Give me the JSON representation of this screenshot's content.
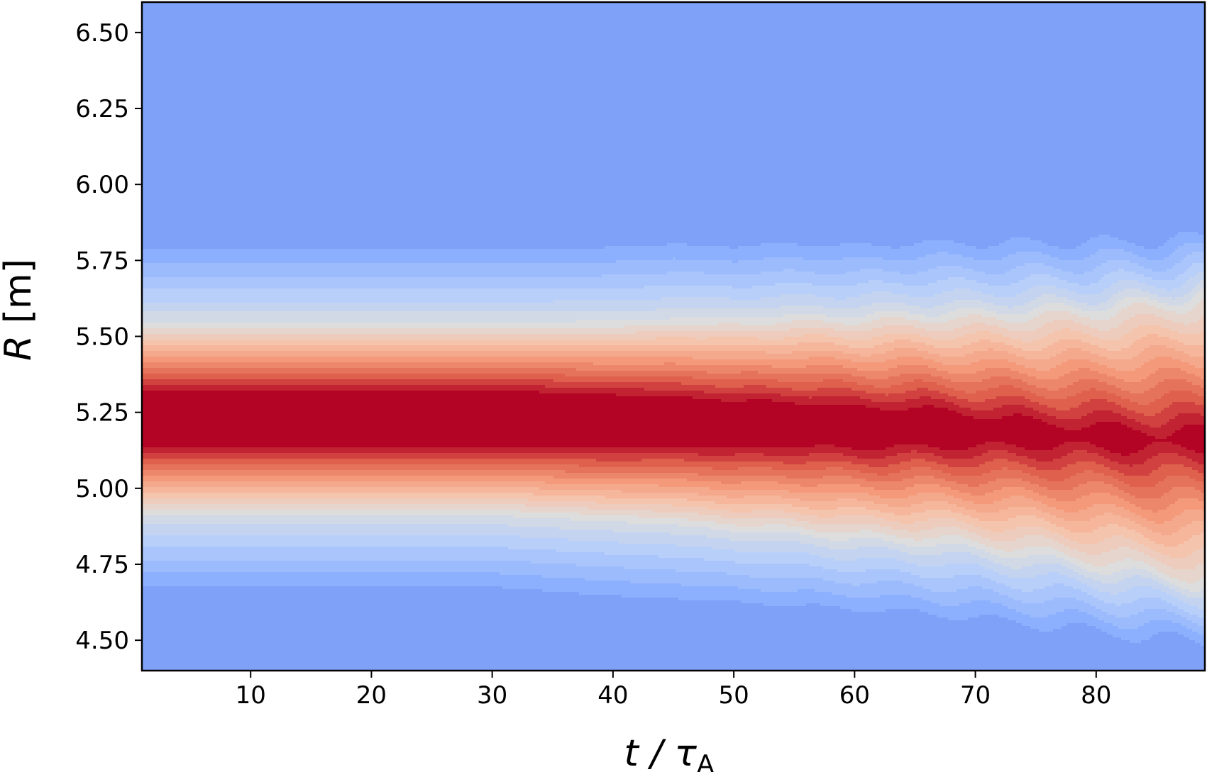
{
  "chart_data": {
    "type": "heatmap",
    "title": "",
    "xlabel": {
      "main": "t / τ",
      "sub": "A"
    },
    "ylabel": {
      "main": "R",
      "unit": " [m]"
    },
    "xlim": [
      1,
      89
    ],
    "ylim": [
      4.4,
      6.6
    ],
    "x_ticks": [
      10,
      20,
      30,
      40,
      50,
      60,
      70,
      80
    ],
    "x_tick_labels": [
      "10",
      "20",
      "30",
      "40",
      "50",
      "60",
      "70",
      "80"
    ],
    "y_ticks": [
      4.5,
      4.75,
      5.0,
      5.25,
      5.5,
      5.75,
      6.0,
      6.25,
      6.5
    ],
    "y_tick_labels": [
      "4.50",
      "4.75",
      "5.00",
      "5.25",
      "5.50",
      "5.75",
      "6.00",
      "6.25",
      "6.50"
    ],
    "grid": false,
    "legend": "none",
    "colormap": "coolwarm (filled contours)",
    "background_color": "#84a6f8",
    "peak_color": "#b9152b",
    "profile": {
      "description": "Radial band centred near R = 5.23 m, flat in t until ~45, broadening and diffusing at later times",
      "t": [
        1,
        10,
        20,
        30,
        40,
        45,
        50,
        55,
        60,
        65,
        70,
        75,
        80,
        85,
        89
      ],
      "center_R": [
        5.23,
        5.23,
        5.23,
        5.23,
        5.22,
        5.22,
        5.21,
        5.21,
        5.2,
        5.2,
        5.19,
        5.18,
        5.17,
        5.16,
        5.16
      ],
      "core_half_width": [
        0.09,
        0.09,
        0.09,
        0.09,
        0.085,
        0.08,
        0.075,
        0.07,
        0.065,
        0.06,
        0.05,
        0.035,
        0.03,
        0.025,
        0.02
      ],
      "band_half_width": [
        0.31,
        0.31,
        0.31,
        0.31,
        0.32,
        0.33,
        0.34,
        0.35,
        0.36,
        0.37,
        0.38,
        0.4,
        0.42,
        0.45,
        0.47
      ],
      "fade_half_width": [
        0.6,
        0.6,
        0.6,
        0.6,
        0.62,
        0.63,
        0.63,
        0.64,
        0.64,
        0.65,
        0.66,
        0.67,
        0.68,
        0.69,
        0.7
      ]
    }
  }
}
